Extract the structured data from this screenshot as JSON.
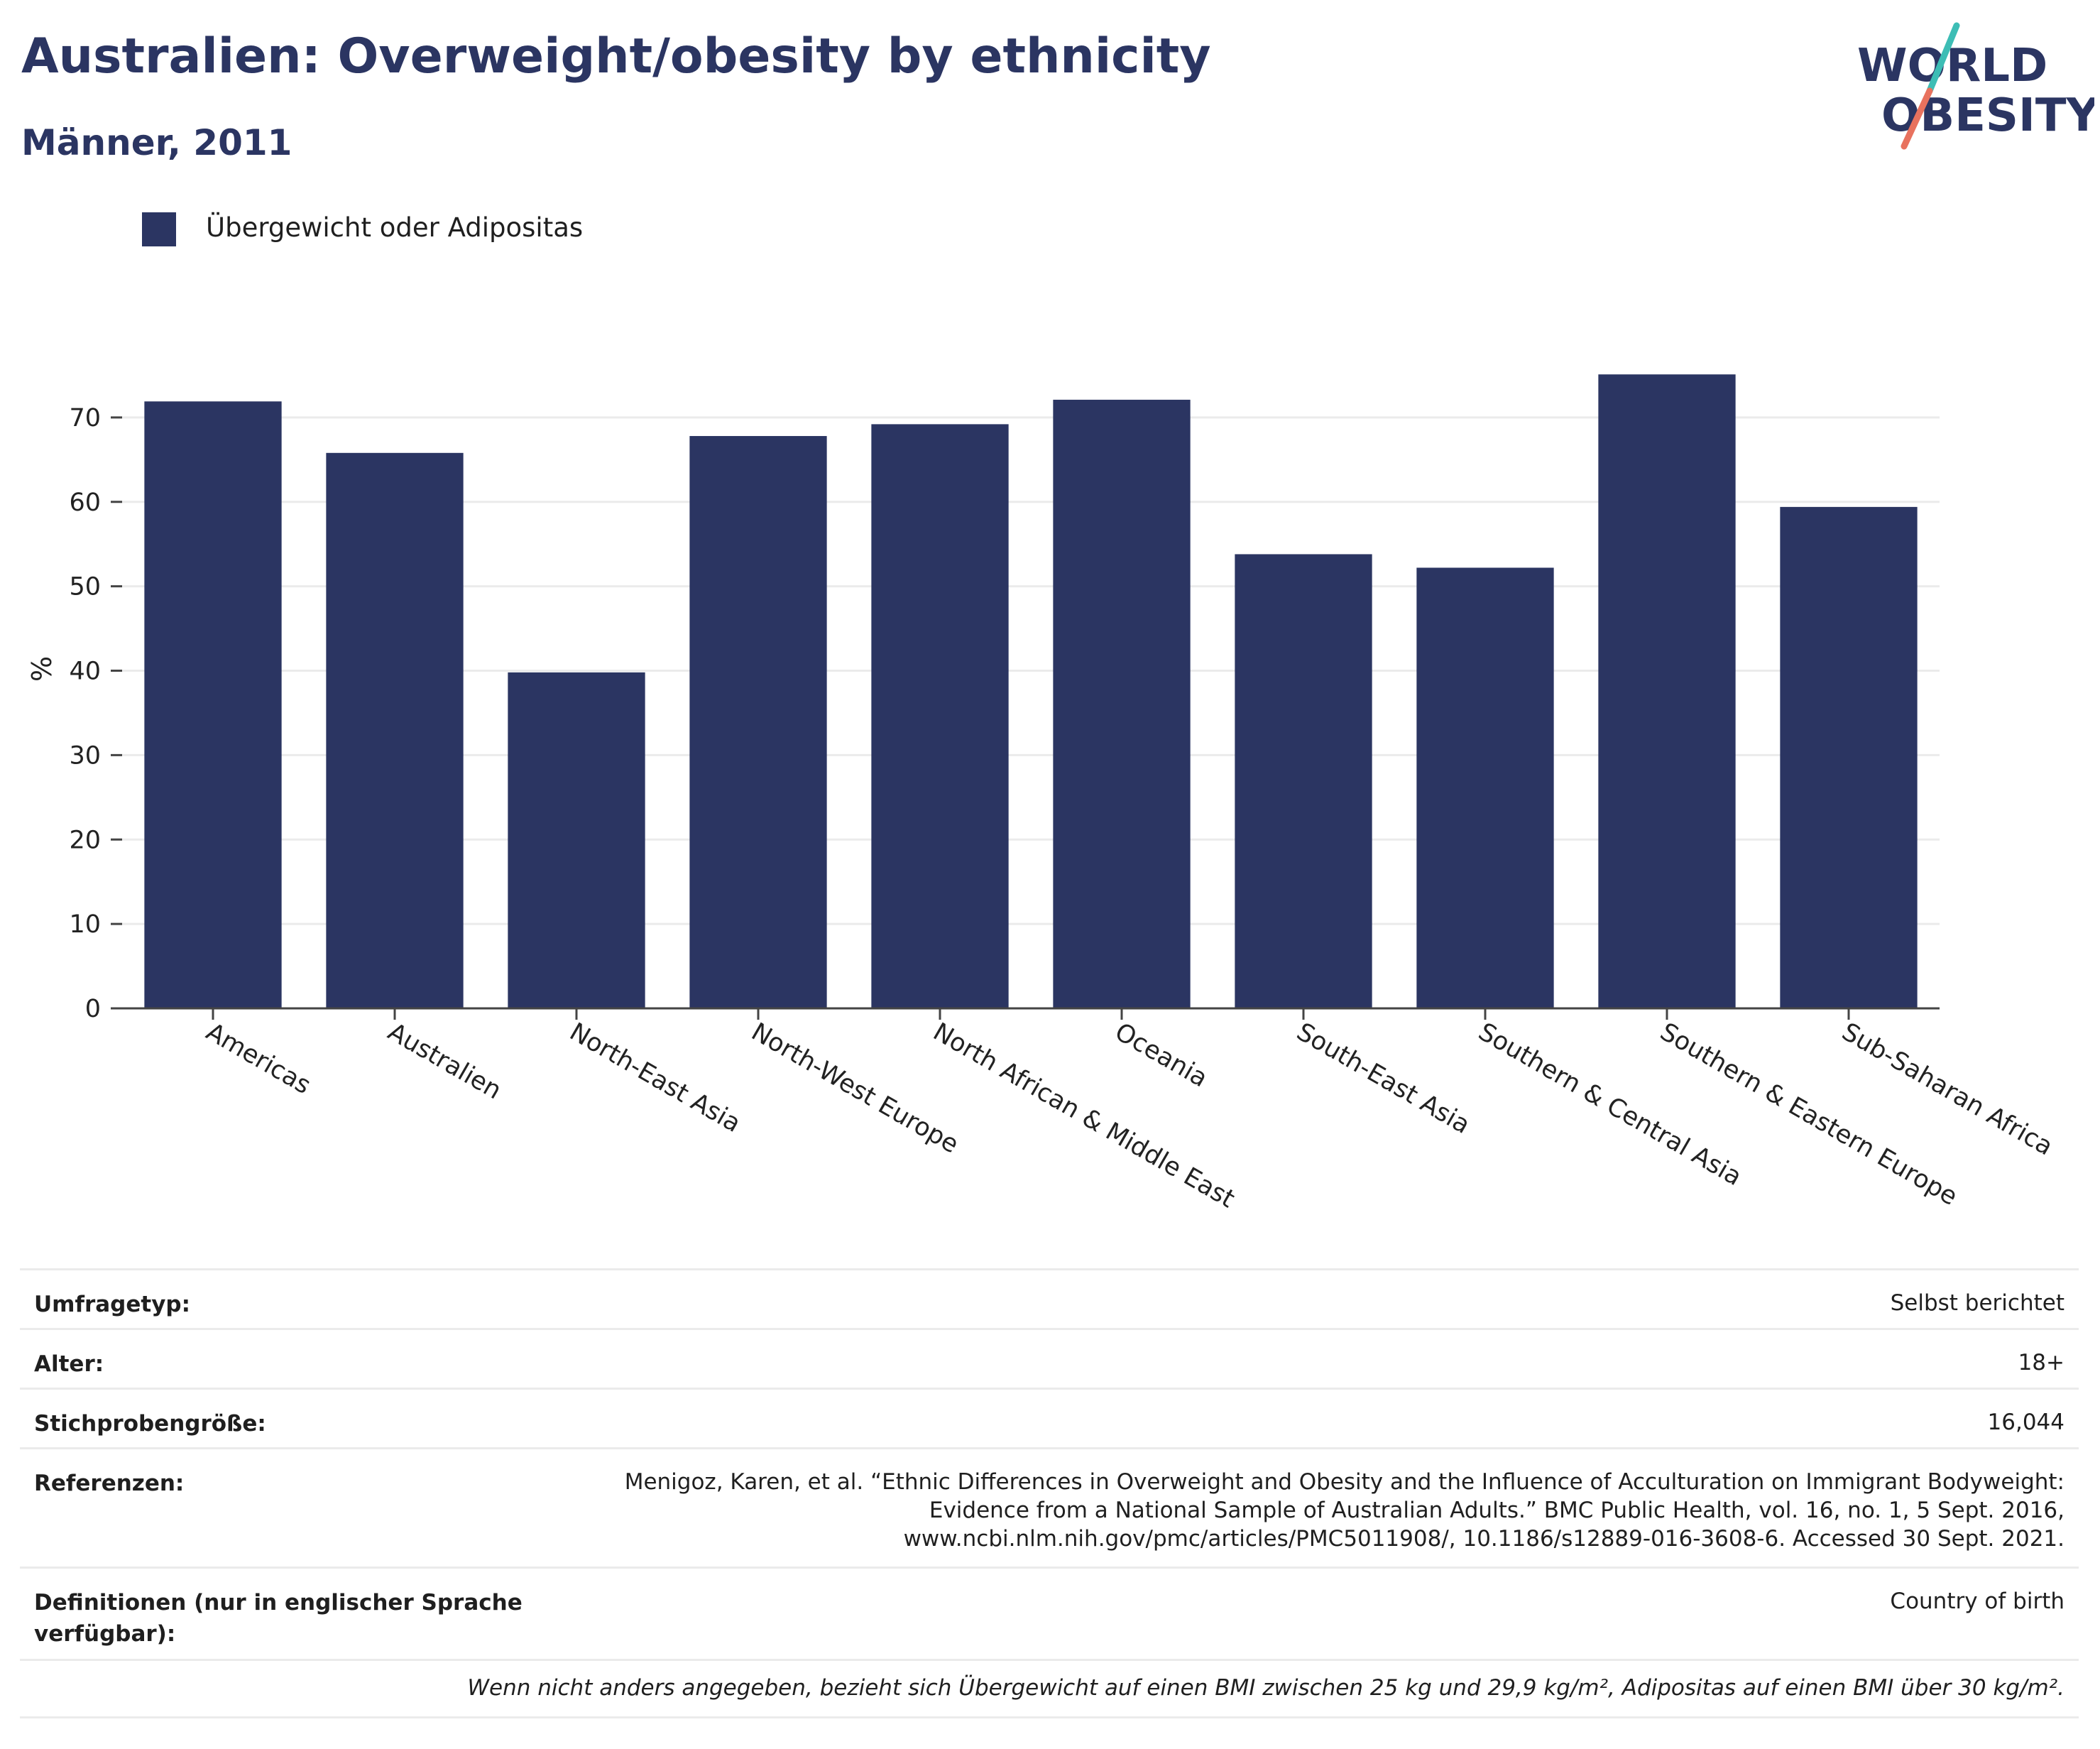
{
  "header": {
    "title": "Australien: Overweight/obesity by ethnicity",
    "subtitle": "Männer, 2011"
  },
  "logo": {
    "line1": "WORLD",
    "line2": "OBESITY"
  },
  "colors": {
    "bar": "#2b3562",
    "logo_text": "#2b3562",
    "logo_teal": "#3dbdb5",
    "logo_coral": "#e8725e",
    "grid": "#ebebeb",
    "axis": "#444444"
  },
  "chart_data": {
    "type": "bar",
    "categories": [
      "Americas",
      "Australien",
      "North-East Asia",
      "North-West Europe",
      "North African & Middle East",
      "Oceania",
      "South-East Asia",
      "Southern & Central Asia",
      "Southern & Eastern Europe",
      "Sub-Saharan Africa"
    ],
    "series": [
      {
        "name": "Übergewicht oder Adipositas",
        "values": [
          71.9,
          65.8,
          39.8,
          67.8,
          69.2,
          72.1,
          53.8,
          52.2,
          75.1,
          59.4
        ]
      }
    ],
    "title": "Australien: Overweight/obesity by ethnicity",
    "subtitle": "Männer, 2011",
    "xlabel": "",
    "ylabel": "%",
    "ylim": [
      0,
      80
    ],
    "yticks": [
      0,
      10,
      20,
      30,
      40,
      50,
      60,
      70
    ],
    "grid": true,
    "legend": "top-left"
  },
  "info": {
    "rows": [
      {
        "label": "Umfragetyp:",
        "value": "Selbst berichtet"
      },
      {
        "label": "Alter:",
        "value": "18+"
      },
      {
        "label": "Stichprobengröße:",
        "value": "16,044"
      },
      {
        "label": "Referenzen:",
        "value_lines": [
          "Menigoz, Karen, et al. “Ethnic Differences in Overweight and Obesity and the Influence of Acculturation on Immigrant Bodyweight:",
          "Evidence from a National Sample of Australian Adults.” BMC Public Health, vol. 16, no. 1, 5 Sept. 2016,",
          "www.ncbi.nlm.nih.gov/pmc/articles/PMC5011908/, 10.1186/s12889-016-3608-6. Accessed 30 Sept. 2021."
        ]
      },
      {
        "label_lines": [
          "Definitionen (nur in englischer Sprache",
          "verfügbar):"
        ],
        "value": "Country of birth"
      }
    ],
    "note": "Wenn nicht anders angegeben, bezieht sich Übergewicht auf einen BMI zwischen 25 kg und 29,9 kg/m², Adipositas auf einen BMI über 30 kg/m²."
  }
}
